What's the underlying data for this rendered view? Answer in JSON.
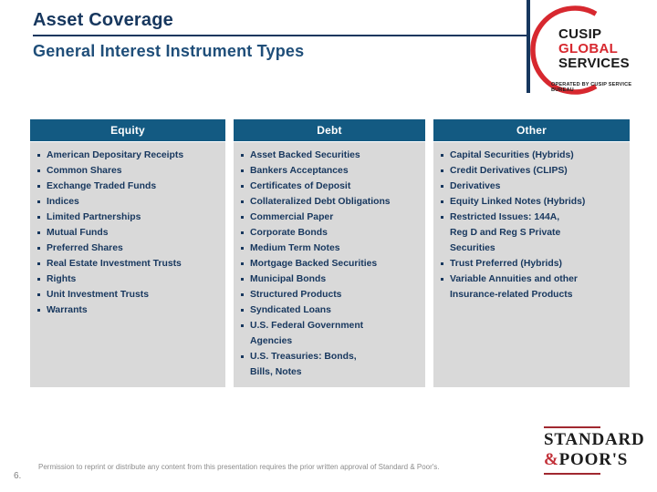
{
  "slide": {
    "title": "Asset Coverage",
    "subtitle": "General Interest Instrument Types",
    "page_number": "6.",
    "footer_note": "Permission to reprint or distribute any content from this presentation requires the prior written approval of Standard & Poor's."
  },
  "cusip_logo": {
    "line1": "CUSIP",
    "line2": "GLOBAL",
    "line3": "SERVICES",
    "tagline": "OPERATED BY CUSIP SERVICE BUREAU"
  },
  "sp_logo": {
    "line1": "STANDARD",
    "amp": "&",
    "line2": "POOR'S"
  },
  "columns": [
    {
      "header": "Equity",
      "items": [
        "American Depositary Receipts",
        "Common Shares",
        "Exchange Traded Funds",
        "Indices",
        "Limited Partnerships",
        "Mutual Funds",
        "Preferred Shares",
        "Real Estate Investment Trusts",
        "Rights",
        "Unit Investment Trusts",
        "Warrants"
      ]
    },
    {
      "header": "Debt",
      "items": [
        "Asset Backed Securities",
        "Bankers Acceptances",
        "Certificates of Deposit",
        "Collateralized Debt Obligations",
        "Commercial Paper",
        "Corporate Bonds",
        "Medium Term Notes",
        "Mortgage Backed Securities",
        "Municipal Bonds",
        "Structured Products",
        "Syndicated Loans",
        "U.S. Federal Government\nAgencies",
        "U.S. Treasuries: Bonds,\nBills, Notes"
      ]
    },
    {
      "header": "Other",
      "items": [
        "Capital Securities (Hybrids)",
        "Credit Derivatives (CLIPS)",
        "Derivatives",
        "Equity Linked Notes (Hybrids)",
        "Restricted Issues: 144A,\nReg D and Reg S Private\nSecurities",
        "Trust Preferred (Hybrids)",
        "Variable Annuities and other\nInsurance-related Products"
      ]
    }
  ],
  "colors": {
    "header_bg": "#135A82",
    "column_bg": "#D9D9D9",
    "text_navy": "#17375E",
    "accent_red": "#D7282F",
    "sp_rule_red": "#A12830"
  }
}
